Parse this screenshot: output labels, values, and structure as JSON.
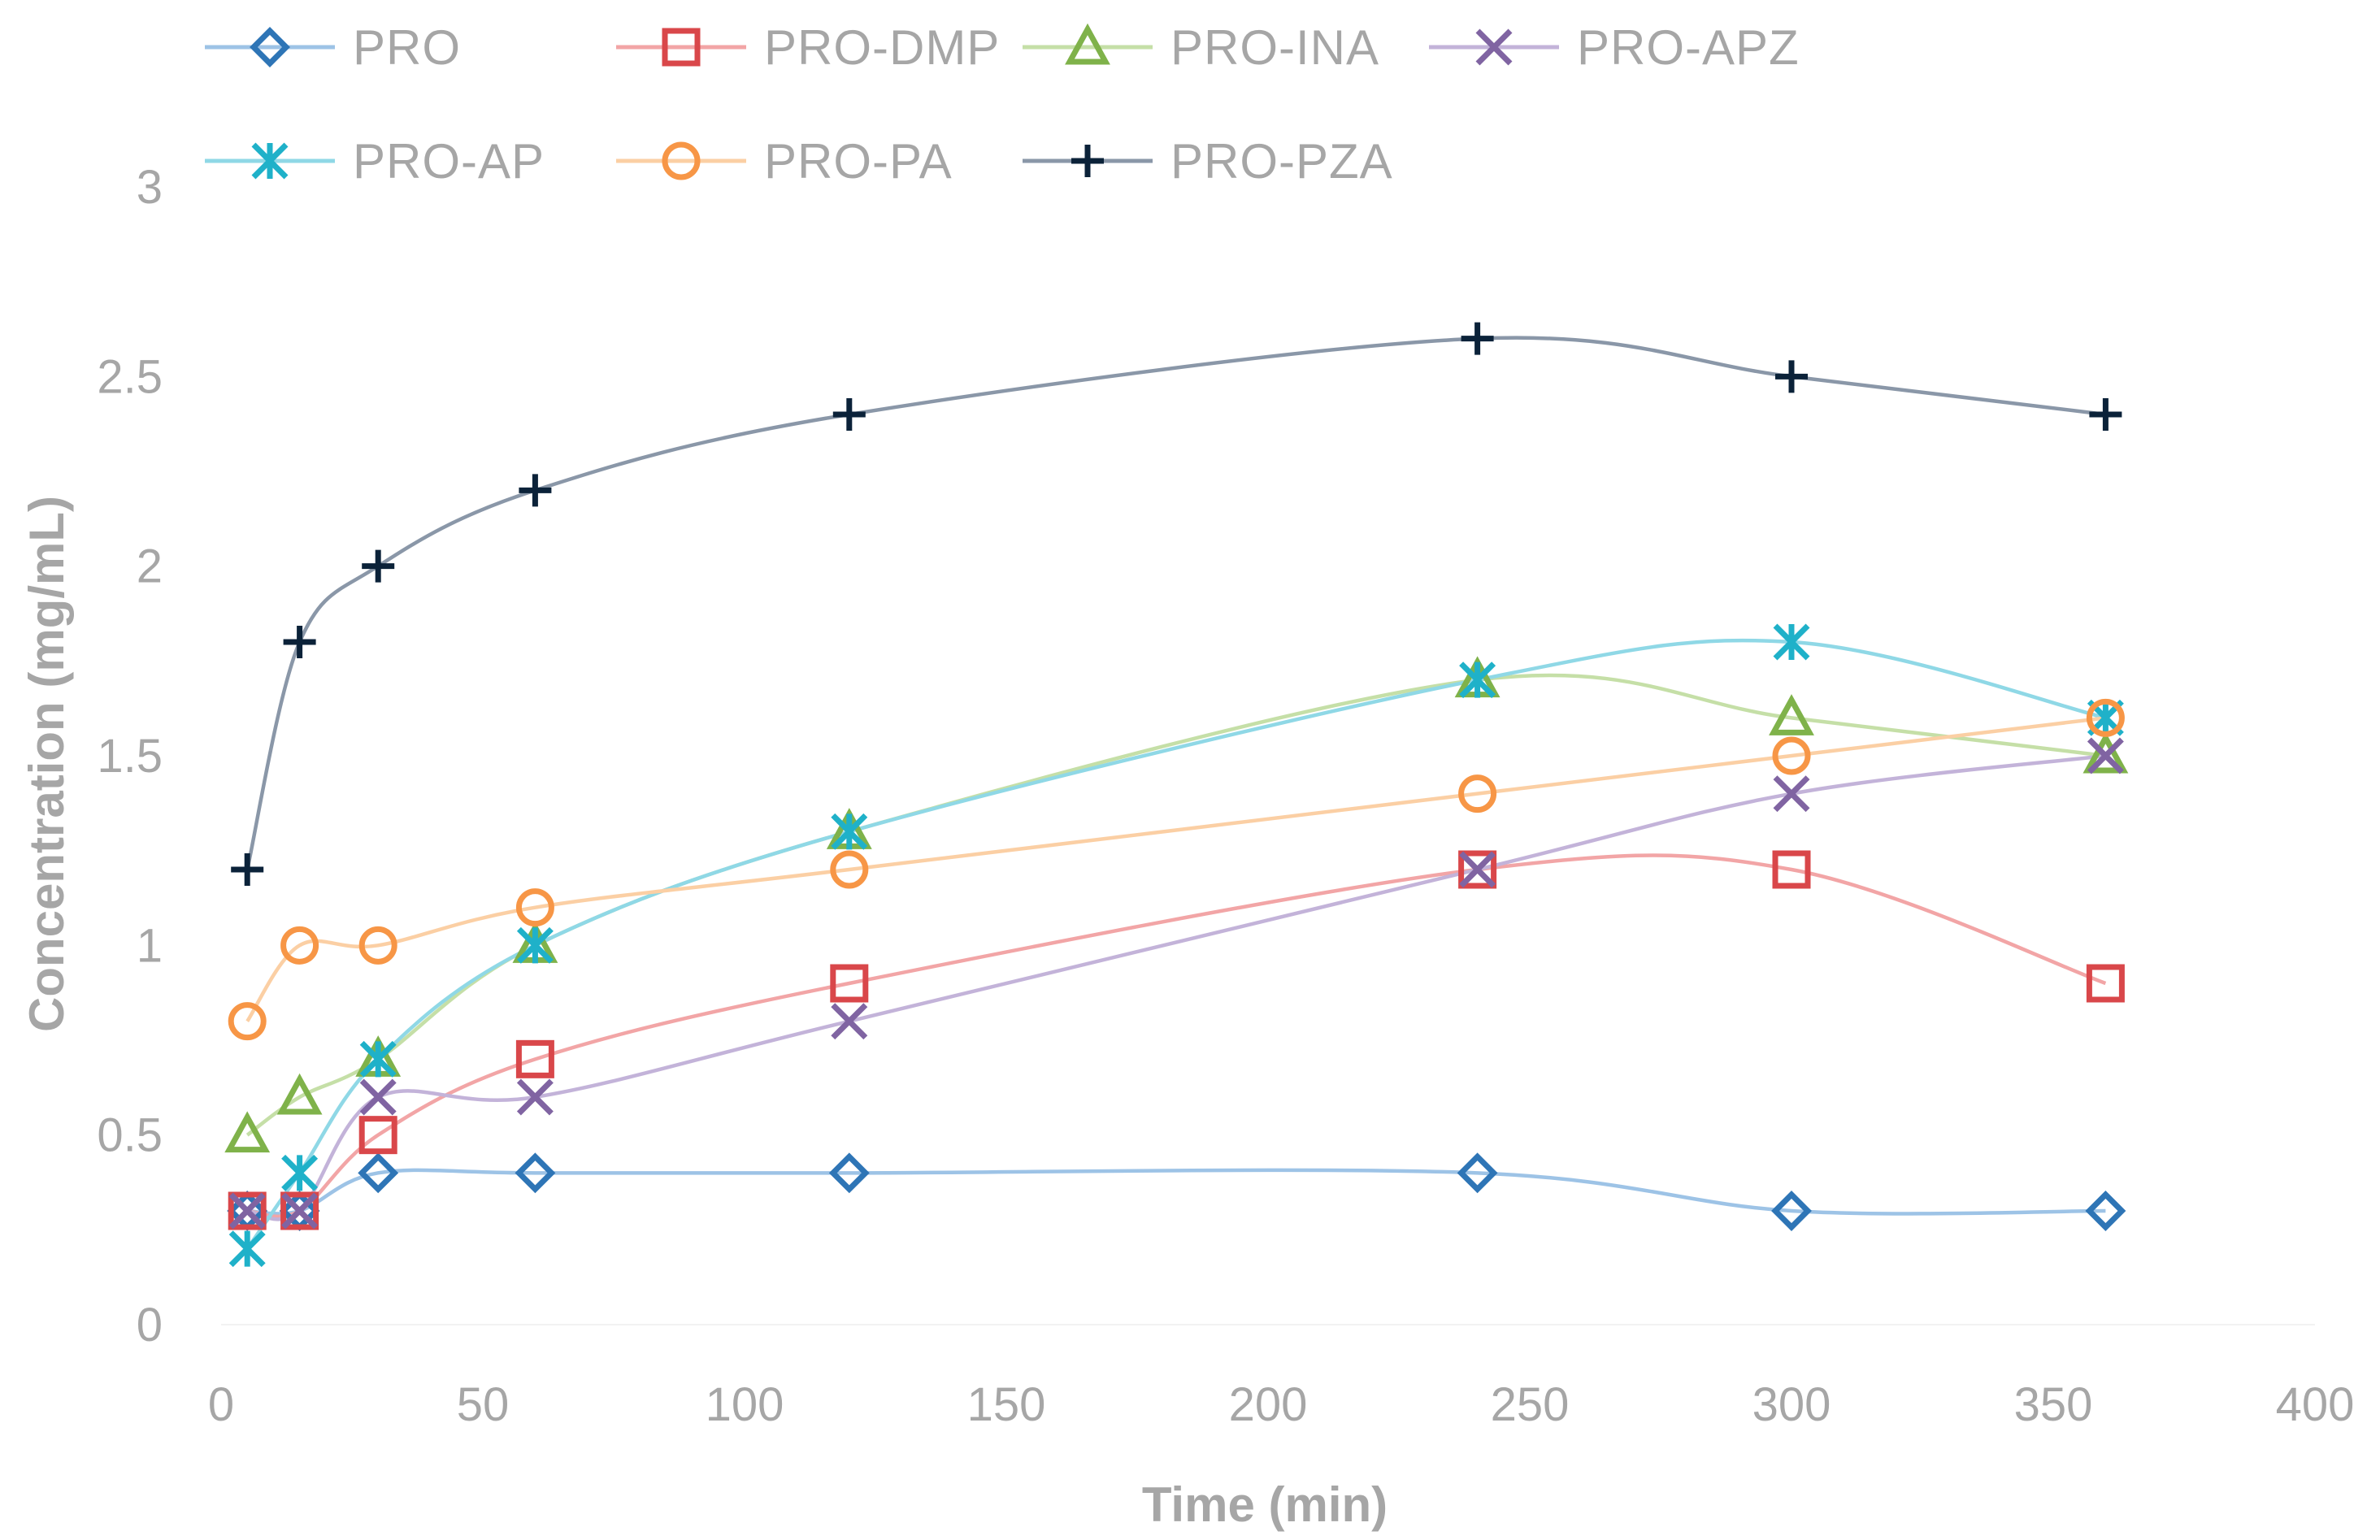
{
  "chart_data": {
    "type": "line",
    "title": "",
    "xlabel": "Time (min)",
    "ylabel": "Concentration (mg/mL)",
    "xlim": [
      0,
      400
    ],
    "ylim": [
      0,
      3
    ],
    "xticks": [
      "0",
      "50",
      "100",
      "150",
      "200",
      "250",
      "300",
      "350",
      "400"
    ],
    "yticks": [
      "0",
      "0.5",
      "1",
      "1.5",
      "2",
      "2.5",
      "3"
    ],
    "x": [
      5,
      15,
      30,
      60,
      120,
      240,
      300,
      360
    ],
    "grid": false,
    "legend_position": "top",
    "series": [
      {
        "name": "PRO",
        "marker": "diamond",
        "color": "#2e75b6",
        "line_color": "#9dc3e6",
        "values": [
          0.3,
          0.3,
          0.4,
          0.4,
          0.4,
          0.4,
          0.3,
          0.3
        ]
      },
      {
        "name": "PRO-DMP",
        "marker": "square",
        "color": "#d9474a",
        "line_color": "#f2a5a6",
        "values": [
          0.3,
          0.3,
          0.5,
          0.7,
          0.9,
          1.2,
          1.2,
          0.9
        ]
      },
      {
        "name": "PRO-INA",
        "marker": "triangle",
        "color": "#7fb24a",
        "line_color": "#c5dfa7",
        "values": [
          0.5,
          0.6,
          0.7,
          1.0,
          1.3,
          1.7,
          1.6,
          1.5
        ]
      },
      {
        "name": "PRO-APZ",
        "marker": "x",
        "color": "#8064a2",
        "line_color": "#c3b3d9",
        "values": [
          0.3,
          0.3,
          0.6,
          0.6,
          0.8,
          1.2,
          1.4,
          1.5
        ]
      },
      {
        "name": "PRO-AP",
        "marker": "asterisk",
        "color": "#1fb1c9",
        "line_color": "#8fd8e6",
        "values": [
          0.2,
          0.4,
          0.7,
          1.0,
          1.3,
          1.7,
          1.8,
          1.6
        ]
      },
      {
        "name": "PRO-PA",
        "marker": "circle",
        "color": "#f79646",
        "line_color": "#fbcfa4",
        "values": [
          0.8,
          1.0,
          1.0,
          1.1,
          1.2,
          1.4,
          1.5,
          1.6
        ]
      },
      {
        "name": "PRO-PZA",
        "marker": "plus",
        "color": "#0b2239",
        "line_color": "#8a97a8",
        "values": [
          1.2,
          1.8,
          2.0,
          2.2,
          2.4,
          2.6,
          2.5,
          2.4
        ]
      }
    ]
  }
}
